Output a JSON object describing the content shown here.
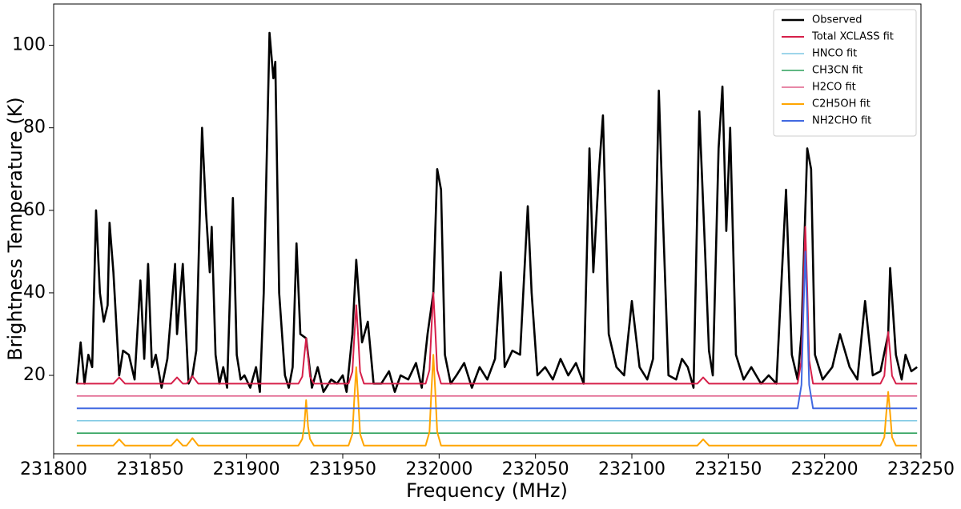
{
  "chart_data": {
    "type": "line",
    "xlabel": "Frequency (MHz)",
    "ylabel": "Brightness Temperature (K)",
    "xlim": [
      231800,
      232250
    ],
    "ylim": [
      1,
      110
    ],
    "xticks": [
      231800,
      231850,
      231900,
      231950,
      232000,
      232050,
      232100,
      232150,
      232200,
      232250
    ],
    "yticks": [
      20,
      40,
      60,
      80,
      100
    ],
    "legend": "upper right",
    "series": [
      {
        "name": "Observed",
        "color": "#000000",
        "width": 2.6,
        "x": [
          231812,
          231814,
          231816,
          231818,
          231820,
          231822,
          231824,
          231826,
          231828,
          231829,
          231831,
          231834,
          231836,
          231839,
          231842,
          231845,
          231847,
          231849,
          231851,
          231853,
          231856,
          231859,
          231863,
          231864,
          231867,
          231870,
          231872,
          231874,
          231877,
          231879,
          231881,
          231882,
          231884,
          231886,
          231888,
          231890,
          231893,
          231895,
          231897,
          231899,
          231902,
          231905,
          231907,
          231909,
          231912,
          231914,
          231915,
          231917,
          231920,
          231922,
          231924,
          231926,
          231928,
          231931,
          231934,
          231937,
          231940,
          231944,
          231947,
          231950,
          231952,
          231955,
          231957,
          231960,
          231963,
          231966,
          231970,
          231974,
          231977,
          231980,
          231984,
          231988,
          231991,
          231994,
          231997,
          231999,
          232001,
          232003,
          232006,
          232009,
          232013,
          232017,
          232021,
          232025,
          232029,
          232032,
          232034,
          232038,
          232042,
          232046,
          232048,
          232051,
          232055,
          232059,
          232063,
          232067,
          232071,
          232075,
          232078,
          232080,
          232083,
          232085,
          232088,
          232092,
          232096,
          232100,
          232104,
          232108,
          232111,
          232114,
          232116,
          232119,
          232123,
          232126,
          232129,
          232132,
          232135,
          232138,
          232140,
          232142,
          232145,
          232147,
          232149,
          232151,
          232154,
          232158,
          232162,
          232167,
          232171,
          232175,
          232180,
          232183,
          232186,
          232188,
          232191,
          232193,
          232195,
          232199,
          232204,
          232208,
          232213,
          232217,
          232221,
          232225,
          232229,
          232233,
          232234,
          232237,
          232240,
          232242,
          232245,
          232248
        ],
        "values": [
          18,
          28,
          18,
          25,
          22,
          60,
          40,
          33,
          37,
          57,
          45,
          20,
          26,
          25,
          19,
          43,
          24,
          47,
          22,
          25,
          17,
          24,
          47,
          30,
          47,
          18,
          20,
          26,
          80,
          60,
          45,
          56,
          25,
          18,
          22,
          17,
          63,
          25,
          19,
          20,
          17,
          22,
          16,
          40,
          103,
          92,
          96,
          40,
          20,
          17,
          22,
          52,
          30,
          29,
          17,
          22,
          16,
          19,
          18,
          20,
          16,
          30,
          48,
          28,
          33,
          18,
          18,
          21,
          16,
          20,
          19,
          23,
          17,
          30,
          40,
          70,
          65,
          25,
          18,
          20,
          23,
          17,
          22,
          19,
          24,
          45,
          22,
          26,
          25,
          61,
          40,
          20,
          22,
          19,
          24,
          20,
          23,
          18,
          75,
          45,
          70,
          83,
          30,
          22,
          20,
          38,
          22,
          19,
          24,
          89,
          60,
          20,
          19,
          24,
          22,
          17,
          84,
          50,
          26,
          20,
          75,
          90,
          55,
          80,
          25,
          19,
          22,
          18,
          20,
          18,
          65,
          25,
          19,
          30,
          75,
          70,
          25,
          19,
          22,
          30,
          22,
          19,
          38,
          20,
          21,
          30,
          46,
          25,
          19,
          25,
          21,
          22
        ]
      },
      {
        "name": "Total XCLASS fit",
        "color": "#d6204a",
        "width": 2,
        "x": [
          231812,
          231831,
          231834,
          231837,
          231861,
          231864,
          231867,
          231869,
          231872,
          231875,
          231927,
          231929,
          231930,
          231931,
          231932,
          231933,
          231935,
          231953,
          231955,
          231956,
          231957,
          231958,
          231959,
          231961,
          231993,
          231995,
          231996,
          231997,
          231998,
          231999,
          232001,
          232134,
          232137,
          232140,
          232186,
          232188,
          232189,
          232190,
          232191,
          232192,
          232194,
          232229,
          232231,
          232232,
          232233,
          232234,
          232235,
          232237,
          232248
        ],
        "values": [
          18,
          18,
          19.5,
          18,
          18,
          19.5,
          18,
          18,
          19.8,
          18,
          18,
          19.7,
          24.6,
          29,
          24.6,
          19.7,
          18,
          18,
          20.9,
          29.4,
          37,
          29.4,
          20.9,
          18,
          18,
          21.3,
          31.2,
          40,
          31.2,
          21.3,
          18,
          18,
          19.5,
          18,
          18,
          23.7,
          40.8,
          56,
          40.8,
          23.7,
          18,
          18,
          19.9,
          25.5,
          30.5,
          25.5,
          19.9,
          18,
          18
        ]
      },
      {
        "name": "HNCO fit",
        "color": "#7ec8e3",
        "width": 1.6,
        "x": [
          231812,
          232248
        ],
        "values": [
          9,
          9
        ]
      },
      {
        "name": "CH3CN fit",
        "color": "#2ca05a",
        "width": 1.6,
        "x": [
          231812,
          232248
        ],
        "values": [
          6,
          6
        ]
      },
      {
        "name": "H2CO fit",
        "color": "#e0608a",
        "width": 1.6,
        "x": [
          231812,
          232248
        ],
        "values": [
          15,
          15
        ]
      },
      {
        "name": "C2H5OH fit",
        "color": "#ffa500",
        "width": 2,
        "x": [
          231812,
          231831,
          231834,
          231837,
          231861,
          231864,
          231867,
          231869,
          231872,
          231875,
          231927,
          231929,
          231930,
          231931,
          231932,
          231933,
          231935,
          231953,
          231955,
          231956,
          231957,
          231958,
          231959,
          231961,
          231993,
          231995,
          231996,
          231997,
          231998,
          231999,
          232001,
          232134,
          232137,
          232140,
          232229,
          232231,
          232232,
          232233,
          232234,
          232235,
          232237,
          232248
        ],
        "values": [
          3,
          3,
          4.5,
          3,
          3,
          4.5,
          3,
          3,
          4.8,
          3,
          3,
          4.6,
          7.6,
          14,
          7.6,
          4.6,
          3,
          3,
          5.8,
          14.4,
          22,
          14.4,
          5.8,
          3,
          3,
          6.3,
          16.2,
          25,
          16.2,
          6.3,
          3,
          3,
          4.5,
          3,
          3,
          5,
          10.8,
          16,
          10.8,
          5,
          3,
          3
        ]
      },
      {
        "name": "NH2CHO fit",
        "color": "#4169e1",
        "width": 2,
        "x": [
          231812,
          232186,
          232188,
          232189,
          232190,
          232191,
          232192,
          232194,
          232248
        ],
        "values": [
          12,
          12,
          17.7,
          34.8,
          50,
          34.8,
          17.7,
          12,
          12
        ]
      }
    ]
  }
}
